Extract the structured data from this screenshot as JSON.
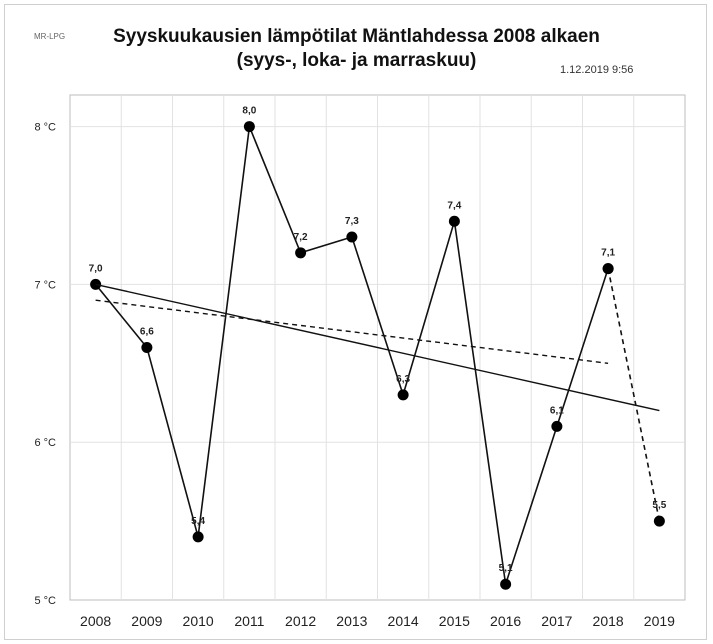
{
  "header": {
    "title_line1": "Syyskuukausien lämpötilat Mäntlahdessa 2008 alkaen",
    "title_line2": "(syys-, loka- ja marraskuu)",
    "timestamp": "1.12.2019 9:56",
    "corner_tag": "MR-LPG"
  },
  "chart_data": {
    "type": "line",
    "title": "Syyskuukausien lämpötilat Mäntlahdessa 2008 alkaen",
    "subtitle": "(syys-, loka- ja marraskuu)",
    "xlabel": "",
    "ylabel": "",
    "categories": [
      "2008",
      "2009",
      "2010",
      "2011",
      "2012",
      "2013",
      "2014",
      "2015",
      "2016",
      "2017",
      "2018",
      "2019"
    ],
    "y_tick_labels": [
      "5 °C",
      "6 °C",
      "7 °C",
      "8 °C"
    ],
    "y_tick_values": [
      5,
      6,
      7,
      8
    ],
    "ylim": [
      5.0,
      8.2
    ],
    "grid": true,
    "series": [
      {
        "style": "solid-markers",
        "values": [
          7.0,
          6.6,
          5.4,
          8.0,
          7.2,
          7.3,
          6.3,
          7.4,
          5.1,
          6.1,
          7.1,
          null
        ],
        "labels": [
          "7,0",
          "6,6",
          "5,4",
          "8,0",
          "7,2",
          "7,3",
          "6,3",
          "7,4",
          "5,1",
          "6,1",
          "7,1",
          null
        ]
      },
      {
        "style": "dashed-markers",
        "values": [
          null,
          null,
          null,
          null,
          null,
          null,
          null,
          null,
          null,
          null,
          7.1,
          5.5
        ],
        "labels": [
          null,
          null,
          null,
          null,
          null,
          null,
          null,
          null,
          null,
          null,
          null,
          "5,5"
        ]
      },
      {
        "style": "solid-trend",
        "values": [
          7.0,
          null,
          null,
          null,
          null,
          null,
          null,
          null,
          null,
          null,
          null,
          6.2
        ]
      },
      {
        "style": "dashed-trend",
        "values": [
          6.9,
          null,
          null,
          null,
          null,
          null,
          null,
          null,
          null,
          null,
          6.5,
          null
        ]
      }
    ]
  }
}
